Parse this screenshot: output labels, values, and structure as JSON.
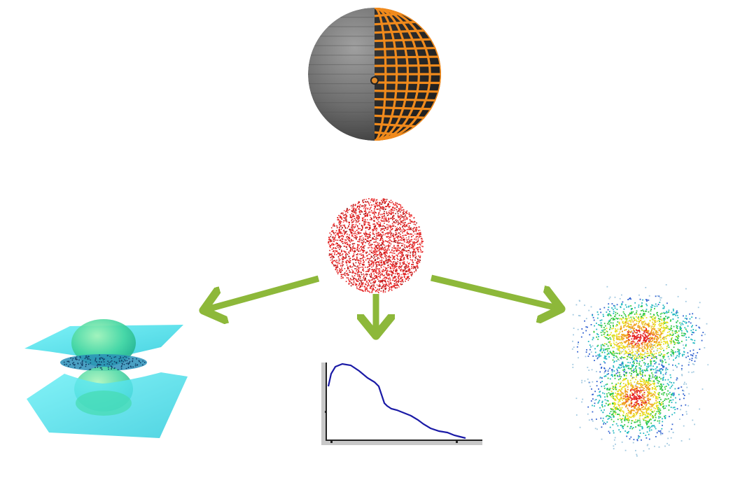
{
  "colors": {
    "sphere_gray": "#6a6a6a",
    "sphere_orange": "#f08a1c",
    "grid_line": "#b05a00",
    "point_red": "#e01c1c",
    "arrow_green": "#8db83a",
    "surface_cyan": "#4fe3ec",
    "curve_blue": "#1a1aa6",
    "axis_gray": "#c8c8c8"
  },
  "flow": {
    "source": "mesh-sphere",
    "intermediate": "point-cloud",
    "outputs": [
      "isosurface",
      "profile-plot",
      "density-scatter"
    ]
  }
}
